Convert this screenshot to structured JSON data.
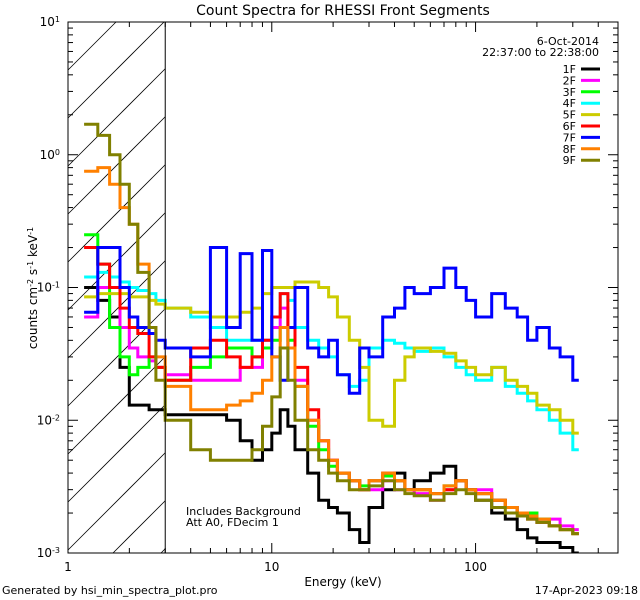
{
  "footer": {
    "left": "Generated by hsi_min_spectra_plot.pro",
    "right": "17-Apr-2023 09:18"
  },
  "chart_data": {
    "type": "line",
    "title": "Count Spectra for RHESSI Front Segments",
    "xlabel": "Energy (keV)",
    "ylabel": "counts cm",
    "ylabel_exp1": "-2",
    "ylabel_mid": " s",
    "ylabel_exp2": "-1",
    "ylabel_end": " keV",
    "ylabel_exp3": "-1",
    "xscale": "log",
    "yscale": "log",
    "xlim": [
      1,
      500
    ],
    "ylim": [
      0.001,
      10
    ],
    "x_ticks": [
      {
        "v": 1,
        "label": "1"
      },
      {
        "v": 10,
        "label": "10"
      },
      {
        "v": 100,
        "label": "100"
      }
    ],
    "y_ticks": [
      {
        "v": 0.001,
        "base": "10",
        "exp": "-3"
      },
      {
        "v": 0.01,
        "base": "10",
        "exp": "-2"
      },
      {
        "v": 0.1,
        "base": "10",
        "exp": "-1"
      },
      {
        "v": 1,
        "base": "10",
        "exp": "0"
      },
      {
        "v": 10,
        "base": "10",
        "exp": "1"
      }
    ],
    "hatch_below_energy": 3,
    "date": "6-Oct-2014",
    "time_range": "22:37:00 to 22:38:00",
    "annotation": [
      "Includes Background",
      "Att A0, FDecim 1"
    ],
    "series": [
      {
        "name": "1F",
        "color": "#000000",
        "x": [
          1.2,
          1.4,
          1.6,
          1.8,
          2.0,
          2.2,
          2.5,
          2.7,
          3.0,
          4.0,
          5.0,
          6.0,
          7.0,
          8.0,
          9.0,
          10.0,
          11.0,
          12.0,
          13.0,
          15.0,
          17.0,
          19.0,
          21.0,
          24.0,
          27.0,
          30.0,
          35.0,
          40.0,
          45.0,
          50.0,
          60.0,
          70.0,
          80.0,
          90.0,
          100.0,
          120.0,
          140.0,
          160.0,
          180.0,
          200.0,
          230.0,
          260.0,
          300.0
        ],
        "y": [
          0.1,
          0.08,
          0.06,
          0.025,
          0.013,
          0.013,
          0.012,
          0.012,
          0.011,
          0.011,
          0.011,
          0.01,
          0.007,
          0.005,
          0.006,
          0.008,
          0.012,
          0.009,
          0.006,
          0.004,
          0.0025,
          0.0022,
          0.002,
          0.0015,
          0.0012,
          0.0022,
          0.003,
          0.004,
          0.003,
          0.0035,
          0.004,
          0.0045,
          0.0035,
          0.003,
          0.0025,
          0.002,
          0.0018,
          0.0015,
          0.0013,
          0.0012,
          0.0012,
          0.0011,
          0.001
        ]
      },
      {
        "name": "2F",
        "color": "#ff00ff",
        "x": [
          1.2,
          1.4,
          1.6,
          1.8,
          2.0,
          2.2,
          2.5,
          2.7,
          3.0,
          4.0,
          5.0,
          6.0,
          7.0,
          8.0,
          9.0,
          10.0,
          11.0,
          12.0,
          13.0,
          15.0,
          17.0,
          19.0,
          21.0,
          24.0,
          27.0,
          30.0,
          35.0,
          40.0,
          45.0,
          50.0,
          60.0,
          70.0,
          80.0,
          90.0,
          100.0,
          120.0,
          140.0,
          160.0,
          180.0,
          200.0,
          230.0,
          260.0,
          300.0
        ],
        "y": [
          0.06,
          0.1,
          0.1,
          0.05,
          0.035,
          0.03,
          0.028,
          0.025,
          0.022,
          0.02,
          0.02,
          0.02,
          0.025,
          0.025,
          0.04,
          0.05,
          0.07,
          0.05,
          0.02,
          0.01,
          0.007,
          0.005,
          0.004,
          0.0035,
          0.003,
          0.003,
          0.0035,
          0.003,
          0.003,
          0.0028,
          0.0025,
          0.003,
          0.0035,
          0.003,
          0.003,
          0.0025,
          0.0022,
          0.002,
          0.002,
          0.0018,
          0.0018,
          0.0016,
          0.0015
        ]
      },
      {
        "name": "3F",
        "color": "#00ff00",
        "x": [
          1.2,
          1.4,
          1.6,
          1.8,
          2.0,
          2.2,
          2.5,
          2.7,
          3.0,
          4.0,
          5.0,
          6.0,
          7.0,
          8.0,
          9.0,
          10.0,
          11.0,
          12.0,
          13.0,
          15.0,
          17.0,
          19.0,
          21.0,
          24.0,
          27.0,
          30.0,
          35.0,
          40.0,
          45.0,
          50.0,
          60.0,
          70.0,
          80.0,
          90.0,
          100.0,
          120.0,
          140.0,
          160.0,
          180.0,
          200.0,
          230.0,
          260.0,
          300.0
        ],
        "y": [
          0.25,
          0.15,
          0.05,
          0.03,
          0.022,
          0.025,
          0.03,
          0.025,
          0.02,
          0.025,
          0.03,
          0.035,
          0.035,
          0.03,
          0.035,
          0.04,
          0.05,
          0.04,
          0.018,
          0.009,
          0.006,
          0.0045,
          0.004,
          0.0035,
          0.0032,
          0.0035,
          0.0038,
          0.0035,
          0.003,
          0.003,
          0.0028,
          0.0032,
          0.0035,
          0.003,
          0.0028,
          0.0025,
          0.0022,
          0.002,
          0.002,
          0.0018,
          0.0016,
          0.0015,
          0.0014
        ]
      },
      {
        "name": "4F",
        "color": "#00ffff",
        "x": [
          1.2,
          1.4,
          1.6,
          1.8,
          2.0,
          2.2,
          2.5,
          2.7,
          3.0,
          4.0,
          5.0,
          6.0,
          7.0,
          8.0,
          9.0,
          10.0,
          11.0,
          12.0,
          13.0,
          15.0,
          17.0,
          19.0,
          21.0,
          24.0,
          27.0,
          30.0,
          35.0,
          40.0,
          45.0,
          50.0,
          60.0,
          70.0,
          80.0,
          90.0,
          100.0,
          120.0,
          140.0,
          160.0,
          180.0,
          200.0,
          230.0,
          260.0,
          300.0
        ],
        "y": [
          0.12,
          0.13,
          0.12,
          0.11,
          0.1,
          0.095,
          0.09,
          0.08,
          0.07,
          0.06,
          0.05,
          0.04,
          0.04,
          0.04,
          0.04,
          0.06,
          0.09,
          0.08,
          0.05,
          0.04,
          0.035,
          0.03,
          0.022,
          0.018,
          0.02,
          0.035,
          0.04,
          0.038,
          0.035,
          0.033,
          0.035,
          0.03,
          0.025,
          0.022,
          0.02,
          0.025,
          0.018,
          0.016,
          0.014,
          0.012,
          0.01,
          0.008,
          0.006
        ]
      },
      {
        "name": "5F",
        "color": "#cccc00",
        "x": [
          1.2,
          1.4,
          1.6,
          1.8,
          2.0,
          2.2,
          2.5,
          2.7,
          3.0,
          4.0,
          5.0,
          6.0,
          7.0,
          8.0,
          9.0,
          10.0,
          11.0,
          12.0,
          13.0,
          15.0,
          17.0,
          19.0,
          21.0,
          24.0,
          27.0,
          30.0,
          35.0,
          40.0,
          45.0,
          50.0,
          60.0,
          70.0,
          80.0,
          90.0,
          100.0,
          120.0,
          140.0,
          160.0,
          180.0,
          200.0,
          230.0,
          260.0,
          300.0
        ],
        "y": [
          0.085,
          0.09,
          0.09,
          0.09,
          0.085,
          0.085,
          0.08,
          0.075,
          0.07,
          0.065,
          0.06,
          0.06,
          0.065,
          0.07,
          0.09,
          0.1,
          0.1,
          0.1,
          0.11,
          0.11,
          0.1,
          0.085,
          0.06,
          0.04,
          0.025,
          0.01,
          0.009,
          0.02,
          0.03,
          0.035,
          0.033,
          0.032,
          0.028,
          0.025,
          0.022,
          0.025,
          0.02,
          0.018,
          0.016,
          0.013,
          0.012,
          0.01,
          0.008
        ]
      },
      {
        "name": "6F",
        "color": "#ff0000",
        "x": [
          1.2,
          1.4,
          1.6,
          1.8,
          2.0,
          2.2,
          2.5,
          2.7,
          3.0,
          4.0,
          5.0,
          6.0,
          7.0,
          8.0,
          9.0,
          10.0,
          11.0,
          12.0,
          13.0,
          15.0,
          17.0,
          19.0,
          21.0,
          24.0,
          27.0,
          30.0,
          35.0,
          40.0,
          45.0,
          50.0,
          60.0,
          70.0,
          80.0,
          90.0,
          100.0,
          120.0,
          140.0,
          160.0,
          180.0,
          200.0,
          230.0,
          260.0,
          300.0
        ],
        "y": [
          0.2,
          0.15,
          0.1,
          0.07,
          0.05,
          0.045,
          0.03,
          0.025,
          0.02,
          0.035,
          0.04,
          0.03,
          0.025,
          0.03,
          0.04,
          0.06,
          0.09,
          0.05,
          0.025,
          0.012,
          0.007,
          0.005,
          0.004,
          0.0035,
          0.003,
          0.0035,
          0.004,
          0.0035,
          0.003,
          0.003,
          0.0028,
          0.003,
          0.0035,
          0.003,
          0.0028,
          0.0025,
          0.0022,
          0.002,
          0.0018,
          0.0017,
          0.0016,
          0.0015,
          0.0014
        ]
      },
      {
        "name": "7F",
        "color": "#0000ff",
        "x": [
          1.2,
          1.4,
          1.6,
          1.8,
          2.0,
          2.2,
          2.5,
          2.7,
          3.0,
          4.0,
          5.0,
          6.0,
          7.0,
          8.0,
          9.0,
          10.0,
          11.0,
          12.0,
          13.0,
          15.0,
          17.0,
          19.0,
          21.0,
          24.0,
          27.0,
          30.0,
          35.0,
          40.0,
          45.0,
          50.0,
          60.0,
          70.0,
          80.0,
          90.0,
          100.0,
          120.0,
          140.0,
          160.0,
          180.0,
          200.0,
          230.0,
          260.0,
          300.0
        ],
        "y": [
          0.065,
          0.2,
          0.2,
          0.1,
          0.06,
          0.05,
          0.045,
          0.04,
          0.035,
          0.03,
          0.2,
          0.05,
          0.18,
          0.04,
          0.19,
          0.03,
          0.02,
          0.05,
          0.1,
          0.035,
          0.03,
          0.04,
          0.022,
          0.016,
          0.035,
          0.03,
          0.06,
          0.07,
          0.1,
          0.09,
          0.1,
          0.14,
          0.1,
          0.08,
          0.06,
          0.09,
          0.07,
          0.06,
          0.04,
          0.05,
          0.035,
          0.03,
          0.02
        ]
      },
      {
        "name": "8F",
        "color": "#ff8000",
        "x": [
          1.2,
          1.4,
          1.6,
          1.8,
          2.0,
          2.2,
          2.5,
          2.7,
          3.0,
          4.0,
          5.0,
          6.0,
          7.0,
          8.0,
          9.0,
          10.0,
          11.0,
          12.0,
          13.0,
          15.0,
          17.0,
          19.0,
          21.0,
          24.0,
          27.0,
          30.0,
          35.0,
          40.0,
          45.0,
          50.0,
          60.0,
          70.0,
          80.0,
          90.0,
          100.0,
          120.0,
          140.0,
          160.0,
          180.0,
          200.0,
          230.0,
          260.0,
          300.0
        ],
        "y": [
          0.75,
          0.8,
          0.6,
          0.4,
          0.3,
          0.15,
          0.05,
          0.03,
          0.018,
          0.012,
          0.012,
          0.013,
          0.014,
          0.016,
          0.02,
          0.03,
          0.05,
          0.035,
          0.018,
          0.01,
          0.007,
          0.005,
          0.004,
          0.0035,
          0.003,
          0.0035,
          0.004,
          0.0035,
          0.003,
          0.003,
          0.0028,
          0.0032,
          0.0035,
          0.003,
          0.0028,
          0.0025,
          0.0022,
          0.002,
          0.0019,
          0.0018,
          0.0016,
          0.0015,
          0.0014
        ]
      },
      {
        "name": "9F",
        "color": "#808000",
        "x": [
          1.2,
          1.4,
          1.6,
          1.8,
          2.0,
          2.2,
          2.5,
          2.7,
          3.0,
          4.0,
          5.0,
          6.0,
          7.0,
          8.0,
          9.0,
          10.0,
          11.0,
          12.0,
          13.0,
          15.0,
          17.0,
          19.0,
          21.0,
          24.0,
          27.0,
          30.0,
          35.0,
          40.0,
          45.0,
          50.0,
          60.0,
          70.0,
          80.0,
          90.0,
          100.0,
          120.0,
          140.0,
          160.0,
          180.0,
          200.0,
          230.0,
          260.0,
          300.0
        ],
        "y": [
          1.7,
          1.4,
          1.0,
          0.6,
          0.3,
          0.13,
          0.05,
          0.02,
          0.01,
          0.006,
          0.005,
          0.005,
          0.005,
          0.006,
          0.009,
          0.015,
          0.035,
          0.02,
          0.01,
          0.006,
          0.005,
          0.004,
          0.0035,
          0.003,
          0.003,
          0.0032,
          0.0035,
          0.003,
          0.0028,
          0.0027,
          0.0025,
          0.0028,
          0.003,
          0.0028,
          0.0025,
          0.0022,
          0.002,
          0.0019,
          0.0018,
          0.0017,
          0.0016,
          0.0015,
          0.0014
        ]
      }
    ]
  }
}
